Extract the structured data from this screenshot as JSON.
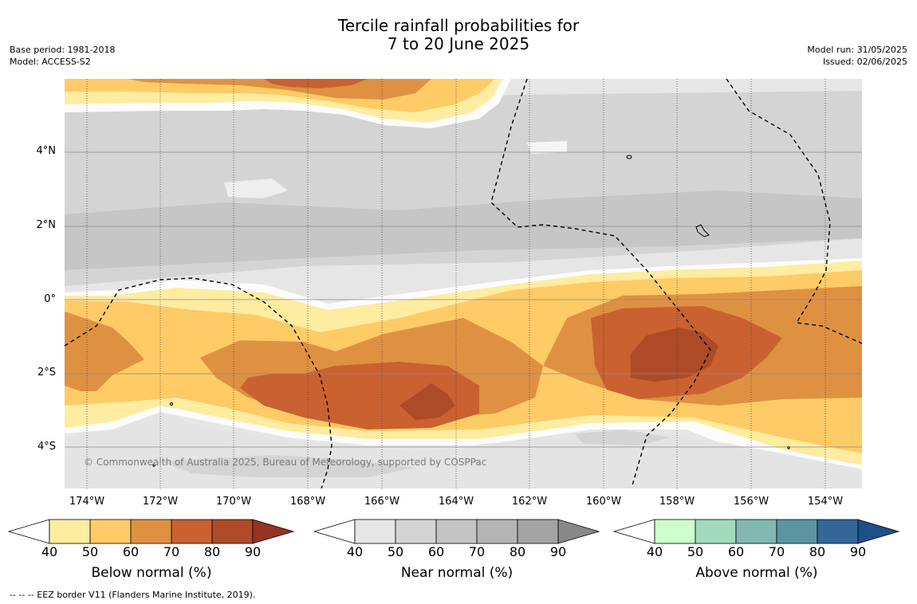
{
  "title": {
    "line1": "Tercile rainfall probabilities for",
    "line2": "7 to 20 June 2025"
  },
  "meta": {
    "base_period": "Base period: 1981-2018",
    "model": "Model: ACCESS-S2",
    "model_run": "Model run: 31/05/2025",
    "issued": "Issued: 02/06/2025"
  },
  "map": {
    "lat_labels": [
      "4°N",
      "2°N",
      "0°",
      "2°S",
      "4°S"
    ],
    "lon_labels": [
      "174°W",
      "172°W",
      "170°W",
      "168°W",
      "166°W",
      "164°W",
      "162°W",
      "160°W",
      "158°W",
      "156°W",
      "154°W"
    ],
    "copyright": "© Commonwealth of Australia 2025, Bureau of Meteorology, supported by COSPPac",
    "dominant_category": {
      "north_band": "Near normal",
      "equatorial_band": "Below normal",
      "south_band": "Near normal"
    }
  },
  "colorbars": [
    {
      "name": "below",
      "title": "Below normal (%)",
      "ticks": [
        "40",
        "50",
        "60",
        "70",
        "80",
        "90"
      ],
      "colors": [
        "#ffffff",
        "#feeca0",
        "#fecb67",
        "#df9142",
        "#c96131",
        "#ad4a28",
        "#963322"
      ]
    },
    {
      "name": "near",
      "title": "Near normal (%)",
      "ticks": [
        "40",
        "50",
        "60",
        "70",
        "80",
        "90"
      ],
      "colors": [
        "#ffffff",
        "#e6e6e6",
        "#d4d4d4",
        "#c4c4c4",
        "#b4b4b4",
        "#a4a4a4",
        "#888888"
      ]
    },
    {
      "name": "above",
      "title": "Above normal (%)",
      "ticks": [
        "40",
        "50",
        "60",
        "70",
        "80",
        "90"
      ],
      "colors": [
        "#ffffff",
        "#ccffcc",
        "#a3d9bd",
        "#82b8b2",
        "#5d94a1",
        "#346699",
        "#1d4f86"
      ]
    }
  ],
  "footer": "--  --  -- EEZ border V11 (Flanders Marine Institute, 2019)."
}
